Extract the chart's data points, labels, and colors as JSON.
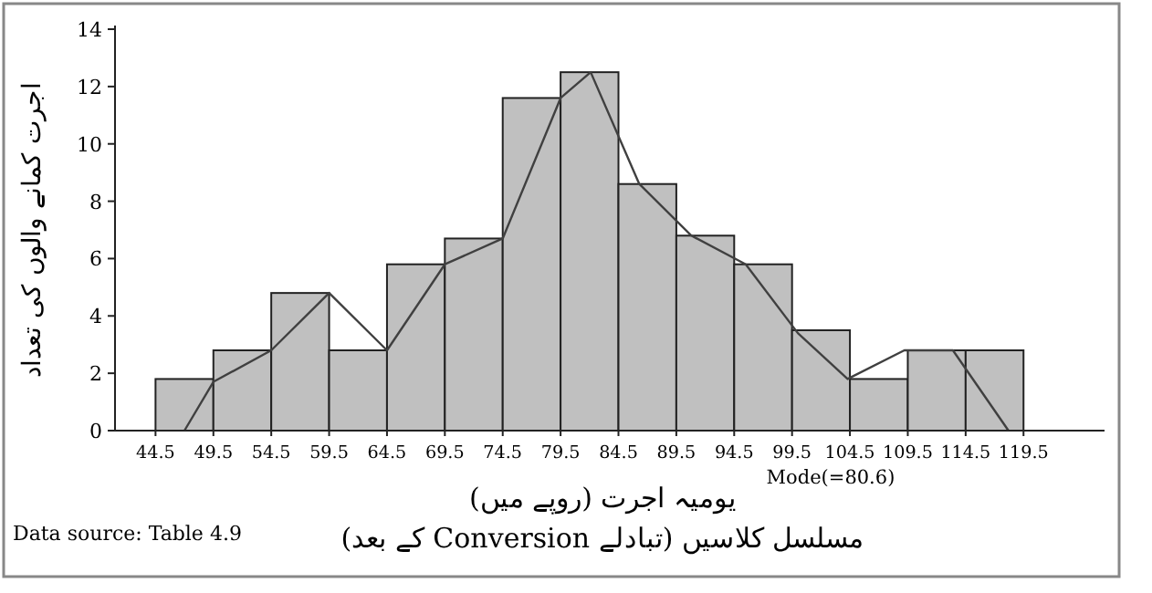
{
  "chart_data": {
    "type": "histogram",
    "ylabel": "اجرت کمانے والوں کی تعداد",
    "xlabel": [
      "یومیہ اجرت (روپے میں)",
      "مسلسل کلاسیں (تبادلے Conversion کے بعد)"
    ],
    "annotations": [
      "Mode(=80.6)",
      "Data source: Table 4.9"
    ],
    "bins": [
      44.5,
      49.5,
      54.5,
      59.5,
      64.5,
      69.5,
      74.5,
      79.5,
      84.5,
      89.5,
      94.5,
      99.5,
      104.5,
      109.5,
      114.5,
      119.5
    ],
    "values": [
      1.8,
      2.8,
      4.8,
      2.8,
      5.8,
      6.7,
      11.6,
      12.5,
      8.6,
      6.8,
      5.8,
      3.5,
      1.8,
      2.8,
      2.8
    ],
    "color": "#c0c0c0",
    "series": [
      {
        "type": "line",
        "color": "#404040",
        "x": [
          47,
          49.5,
          54.5,
          59.5,
          64.5,
          69.5,
          74.5,
          79.5,
          82.1,
          86.3,
          90.8,
          95.5,
          100,
          104.3,
          109.2,
          113.4,
          118.2
        ],
        "values": [
          0,
          1.7,
          2.8,
          4.8,
          2.8,
          5.8,
          6.7,
          11.6,
          12.5,
          8.6,
          6.8,
          5.8,
          3.4,
          1.8,
          2.8,
          2.8,
          0
        ]
      }
    ],
    "xlim": [
      41,
      126.5
    ],
    "xticks": [
      44.5,
      49.5,
      54.5,
      59.5,
      64.5,
      69.5,
      74.5,
      79.5,
      84.5,
      89.5,
      94.5,
      99.5,
      104.5,
      109.5,
      114.5,
      119.5
    ],
    "ylim": [
      0,
      14
    ],
    "yticks": [
      0,
      2,
      4,
      6,
      8,
      10,
      12,
      14
    ],
    "grid": false
  }
}
